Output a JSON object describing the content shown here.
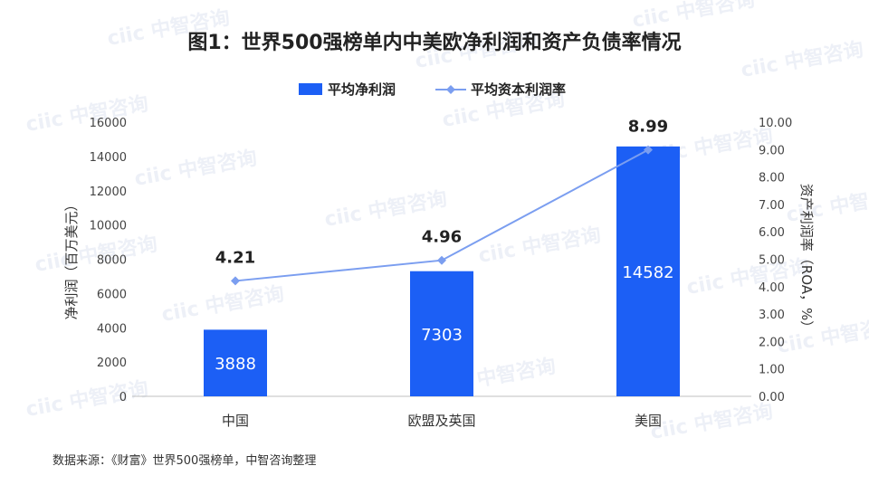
{
  "source_note": "数据来源：《财富》世界500强榜单，中智咨询整理",
  "watermark": "ciic 中智咨询",
  "chart_data": {
    "type": "bar",
    "title": "图1：世界500强榜单内中美欧净利润和资产负债率情况",
    "categories": [
      "中国",
      "欧盟及英国",
      "美国"
    ],
    "series": [
      {
        "name": "平均净利润",
        "type": "bar",
        "axis": "left",
        "color": "#1c5ff5",
        "values": [
          3888,
          7303,
          14582
        ]
      },
      {
        "name": "平均资本利润率",
        "type": "line",
        "axis": "right",
        "color": "#7b9ef0",
        "values": [
          4.21,
          4.96,
          8.99
        ]
      }
    ],
    "ylabel_left": "净利润（百万美元）",
    "ylabel_right": "资产利润率（ROA，%）",
    "ylim_left": [
      0,
      16000
    ],
    "ylim_right": [
      0,
      10
    ],
    "yticks_left": [
      "0",
      "2000",
      "4000",
      "6000",
      "8000",
      "10000",
      "12000",
      "14000",
      "16000"
    ],
    "yticks_right": [
      "0.00",
      "1.00",
      "2.00",
      "3.00",
      "4.00",
      "5.00",
      "6.00",
      "7.00",
      "8.00",
      "9.00",
      "10.00"
    ],
    "legend_position": "top-center",
    "grid": false
  }
}
